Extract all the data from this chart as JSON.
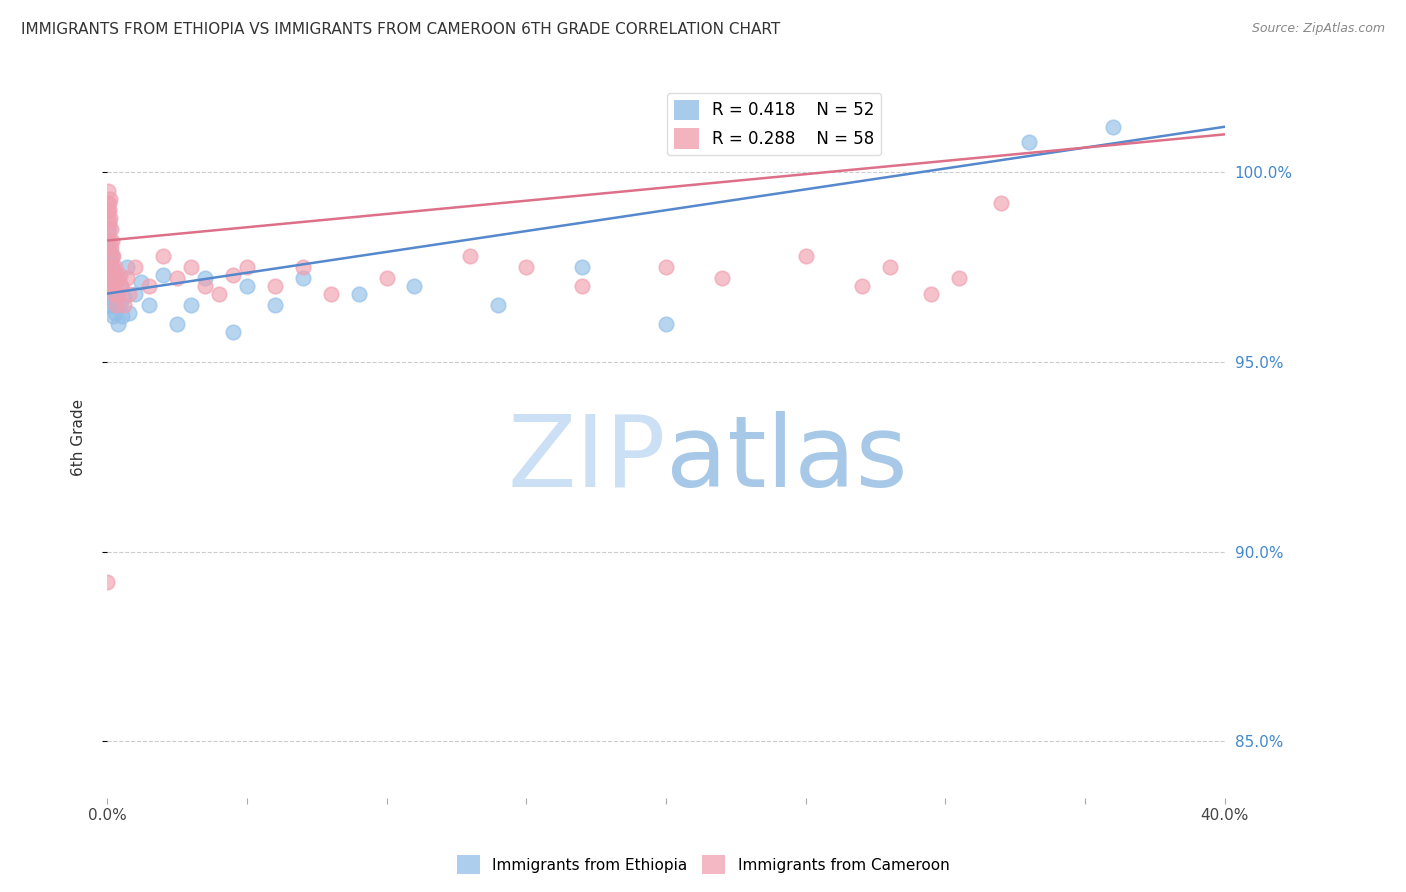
{
  "title": "IMMIGRANTS FROM ETHIOPIA VS IMMIGRANTS FROM CAMEROON 6TH GRADE CORRELATION CHART",
  "source": "Source: ZipAtlas.com",
  "ylabel": "6th Grade",
  "ethiopia_R": 0.418,
  "ethiopia_N": 52,
  "cameroon_R": 0.288,
  "cameroon_N": 58,
  "ethiopia_color": "#92bfe8",
  "cameroon_color": "#f0a0b0",
  "ethiopia_line_color": "#5588cc",
  "cameroon_line_color": "#dd7088",
  "bg_color": "#ffffff",
  "watermark_zip_color": "#c8dff5",
  "watermark_atlas_color": "#a8c8e8",
  "x_min": 0.0,
  "x_max": 40.0,
  "y_min": 83.5,
  "y_max": 102.5,
  "y_ticks": [
    85.0,
    90.0,
    95.0,
    100.0
  ],
  "eth_x": [
    0.0,
    0.01,
    0.02,
    0.03,
    0.04,
    0.05,
    0.06,
    0.07,
    0.08,
    0.09,
    0.1,
    0.12,
    0.13,
    0.14,
    0.15,
    0.17,
    0.18,
    0.19,
    0.2,
    0.22,
    0.23,
    0.25,
    0.27,
    0.3,
    0.32,
    0.35,
    0.38,
    0.4,
    0.45,
    0.5,
    0.55,
    0.6,
    0.7,
    0.8,
    1.0,
    1.2,
    1.5,
    2.0,
    2.5,
    3.0,
    3.5,
    4.5,
    5.0,
    6.0,
    7.0,
    9.0,
    11.0,
    14.0,
    17.0,
    20.0,
    33.0,
    36.0
  ],
  "eth_y": [
    97.2,
    97.5,
    98.0,
    97.8,
    97.3,
    98.2,
    97.6,
    98.5,
    97.1,
    97.9,
    96.8,
    97.4,
    97.7,
    96.5,
    97.0,
    97.3,
    96.8,
    97.5,
    96.2,
    97.1,
    96.5,
    96.9,
    96.3,
    97.0,
    96.5,
    96.8,
    97.2,
    96.0,
    96.5,
    97.0,
    96.2,
    96.7,
    97.5,
    96.3,
    96.8,
    97.1,
    96.5,
    97.3,
    96.0,
    96.5,
    97.2,
    95.8,
    97.0,
    96.5,
    97.2,
    96.8,
    97.0,
    96.5,
    97.5,
    96.0,
    100.8,
    101.2
  ],
  "cam_x": [
    0.0,
    0.01,
    0.02,
    0.03,
    0.04,
    0.05,
    0.06,
    0.07,
    0.08,
    0.09,
    0.1,
    0.11,
    0.12,
    0.13,
    0.14,
    0.15,
    0.16,
    0.17,
    0.18,
    0.19,
    0.2,
    0.22,
    0.23,
    0.25,
    0.28,
    0.3,
    0.32,
    0.35,
    0.4,
    0.45,
    0.5,
    0.6,
    0.7,
    0.8,
    1.0,
    1.5,
    2.0,
    2.5,
    3.0,
    3.5,
    4.0,
    4.5,
    5.0,
    6.0,
    7.0,
    8.0,
    10.0,
    13.0,
    15.0,
    17.0,
    20.0,
    22.0,
    25.0,
    27.0,
    28.0,
    29.5,
    30.5,
    32.0
  ],
  "cam_y": [
    89.2,
    99.2,
    99.5,
    98.8,
    99.0,
    98.5,
    99.2,
    99.0,
    98.7,
    99.3,
    98.2,
    98.8,
    97.5,
    98.0,
    97.2,
    98.5,
    97.8,
    97.0,
    98.2,
    97.5,
    97.0,
    97.8,
    97.2,
    96.8,
    97.5,
    97.0,
    96.5,
    97.2,
    96.8,
    97.3,
    97.0,
    96.5,
    97.2,
    96.8,
    97.5,
    97.0,
    97.8,
    97.2,
    97.5,
    97.0,
    96.8,
    97.3,
    97.5,
    97.0,
    97.5,
    96.8,
    97.2,
    97.8,
    97.5,
    97.0,
    97.5,
    97.2,
    97.8,
    97.0,
    97.5,
    96.8,
    97.2,
    99.2
  ],
  "eth_trend_x": [
    0.0,
    40.0
  ],
  "eth_trend_y": [
    96.8,
    101.2
  ],
  "cam_trend_x": [
    0.0,
    40.0
  ],
  "cam_trend_y": [
    98.2,
    101.0
  ]
}
